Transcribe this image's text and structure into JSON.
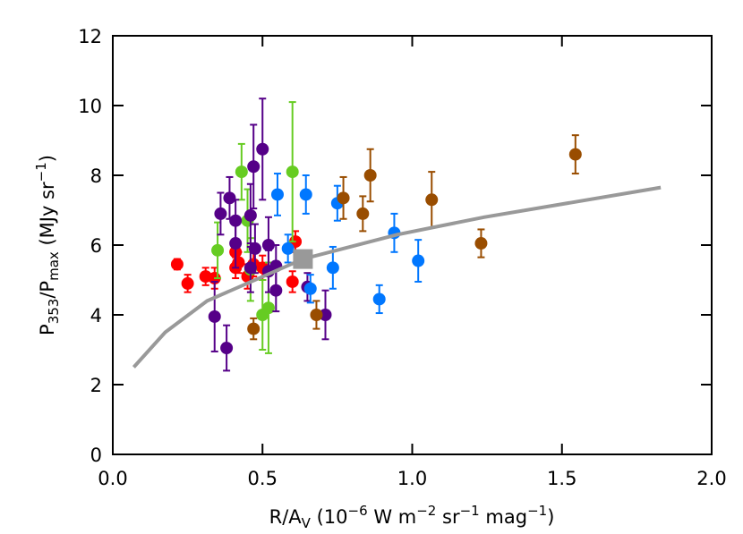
{
  "chart_data": {
    "type": "scatter",
    "xlabel": [
      "R/A",
      "V",
      " (10",
      "−6",
      " W m",
      "−2",
      " sr",
      "−1",
      " mag",
      "−1",
      ")"
    ],
    "ylabel": [
      "P",
      "353",
      "/P",
      "max",
      " (MJy sr",
      "−1",
      ")"
    ],
    "xlim": [
      0,
      2
    ],
    "ylim": [
      0,
      12
    ],
    "xticks": [
      {
        "value": 0,
        "label": "0.0"
      },
      {
        "value": 0.5,
        "label": "0.5"
      },
      {
        "value": 1,
        "label": "1.0"
      },
      {
        "value": 1.5,
        "label": "1.5"
      },
      {
        "value": 2,
        "label": "2.0"
      }
    ],
    "yticks": [
      0,
      2,
      4,
      6,
      8,
      10,
      12
    ],
    "series": [
      {
        "color": "#ff0000",
        "x": [
          0.215,
          0.25,
          0.31,
          0.34,
          0.41,
          0.41,
          0.42,
          0.45,
          0.47,
          0.61,
          0.6,
          0.5
        ],
        "values": [
          5.45,
          4.9,
          5.1,
          5.05,
          5.35,
          5.8,
          5.5,
          5.1,
          5.45,
          6.1,
          4.95,
          5.35
        ],
        "errors": [
          0.15,
          0.25,
          0.25,
          0.3,
          0.3,
          0.3,
          0.3,
          0.35,
          0.35,
          0.3,
          0.3,
          0.35
        ]
      },
      {
        "color": "#66cc22",
        "x": [
          0.35,
          0.43,
          0.45,
          0.5,
          0.52,
          0.6,
          0.46
        ],
        "values": [
          5.85,
          8.1,
          6.7,
          4.0,
          4.2,
          8.1,
          5.3
        ],
        "errors": [
          0.8,
          0.8,
          0.9,
          1.0,
          1.3,
          2.0,
          0.9
        ]
      },
      {
        "color": "#550088",
        "x": [
          0.34,
          0.38,
          0.36,
          0.39,
          0.41,
          0.41,
          0.46,
          0.47,
          0.5,
          0.475,
          0.46,
          0.52,
          0.52,
          0.545,
          0.545,
          0.65,
          0.71
        ],
        "values": [
          3.95,
          3.05,
          6.9,
          7.35,
          6.7,
          6.05,
          6.85,
          8.25,
          8.75,
          5.9,
          5.35,
          5.25,
          6.0,
          5.4,
          4.7,
          4.8,
          4.0
        ],
        "errors": [
          1.0,
          0.65,
          0.6,
          0.6,
          0.6,
          0.7,
          0.9,
          1.2,
          1.45,
          0.7,
          0.7,
          0.6,
          0.8,
          0.6,
          0.6,
          0.4,
          0.7
        ]
      },
      {
        "color": "#0077ff",
        "x": [
          0.55,
          0.645,
          0.585,
          0.66,
          0.75,
          0.735,
          0.94,
          0.89,
          1.02
        ],
        "values": [
          7.45,
          7.45,
          5.9,
          4.75,
          7.2,
          5.35,
          6.35,
          4.45,
          5.55
        ],
        "errors": [
          0.6,
          0.55,
          0.4,
          0.4,
          0.5,
          0.6,
          0.55,
          0.4,
          0.6
        ]
      },
      {
        "color": "#994d00",
        "x": [
          0.47,
          0.68,
          0.77,
          0.835,
          0.86,
          1.065,
          1.23,
          1.545
        ],
        "values": [
          3.6,
          4.0,
          7.35,
          6.9,
          8.0,
          7.3,
          6.05,
          8.6
        ],
        "errors": [
          0.3,
          0.4,
          0.6,
          0.5,
          0.75,
          0.8,
          0.4,
          0.55
        ]
      }
    ],
    "line": {
      "color": "#999999",
      "x": [
        0.07,
        0.175,
        0.315,
        0.635,
        0.95,
        1.24,
        1.83
      ],
      "values": [
        2.5,
        3.5,
        4.4,
        5.6,
        6.3,
        6.8,
        7.65
      ]
    },
    "marker": {
      "color": "#999999",
      "x": 0.635,
      "value": 5.6
    }
  }
}
